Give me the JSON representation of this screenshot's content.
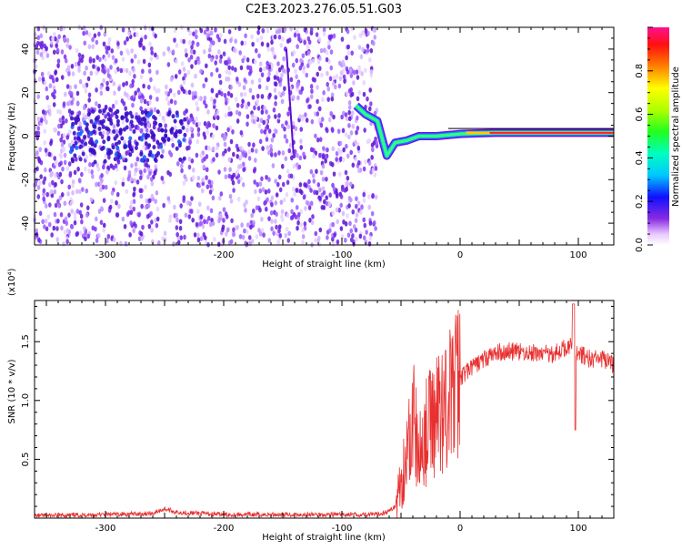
{
  "title": "C2E3.2023.276.05.51.G03",
  "colorbar": {
    "label": "Normalized spectral amplitude",
    "ticks": [
      "0.0",
      "0.2",
      "0.4",
      "0.6",
      "0.8"
    ],
    "tick_values": [
      0.0,
      0.2,
      0.4,
      0.6,
      0.8
    ],
    "range": [
      0,
      1
    ]
  },
  "chart_data": [
    {
      "type": "heatmap",
      "xlabel": "Height of straight line (km)",
      "ylabel": "Frequency (Hz)",
      "xlim": [
        -360,
        130
      ],
      "ylim": [
        -50,
        50
      ],
      "xticks": [
        -300,
        -200,
        -100,
        0,
        100
      ],
      "xtick_labels": [
        "-300",
        "-200",
        "-100",
        "0",
        "100"
      ],
      "yticks": [
        -40,
        -20,
        0,
        20,
        40
      ],
      "ytick_labels": [
        "-40",
        "-20",
        "0",
        "20",
        "40"
      ],
      "description_series": [
        {
          "name": "",
          "x": [
            -88,
            -80,
            -70,
            -62,
            -55,
            -45,
            -35,
            -20,
            0,
            30,
            60,
            90,
            110,
            130
          ],
          "y": [
            14,
            10,
            7,
            -9,
            -3,
            -2,
            0,
            0,
            1,
            1.5,
            1.5,
            1.5,
            1.5,
            1.5
          ]
        }
      ]
    },
    {
      "type": "line",
      "xlabel": "Height of straight line (km)",
      "ylabel": "SNR (10 * v/v)",
      "yunit": "(x10⁴)",
      "xlim": [
        -360,
        130
      ],
      "ylim": [
        0,
        1.85
      ],
      "xticks": [
        -300,
        -200,
        -100,
        0,
        100
      ],
      "xtick_labels": [
        "-300",
        "-200",
        "-100",
        "0",
        "100"
      ],
      "yticks": [
        0.5,
        1.0,
        1.5
      ],
      "ytick_labels": [
        "0.5",
        "1.0",
        "1.5"
      ],
      "color": "#e83030",
      "series": [
        {
          "name": "",
          "x": [
            -360,
            -300,
            -260,
            -250,
            -240,
            -200,
            -150,
            -100,
            -70,
            -60,
            -55,
            -50,
            -45,
            -40,
            -35,
            -30,
            -25,
            -20,
            -15,
            -10,
            -5,
            0,
            10,
            20,
            30,
            40,
            60,
            80,
            90,
            95,
            100,
            110,
            120,
            130
          ],
          "y": [
            0.02,
            0.03,
            0.04,
            0.08,
            0.05,
            0.03,
            0.03,
            0.03,
            0.03,
            0.06,
            0.1,
            0.3,
            0.6,
            0.9,
            0.5,
            0.7,
            0.8,
            0.9,
            0.95,
            1.0,
            1.1,
            1.2,
            1.28,
            1.35,
            1.4,
            1.42,
            1.4,
            1.4,
            1.45,
            1.5,
            1.4,
            1.35,
            1.35,
            1.3
          ]
        }
      ]
    }
  ]
}
